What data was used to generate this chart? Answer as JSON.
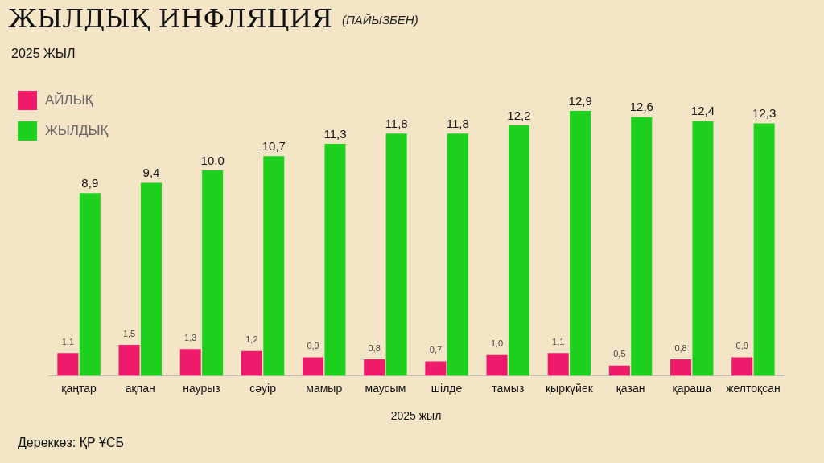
{
  "chart_data": {
    "type": "bar",
    "title": "ЖЫЛДЫҚ ИНФЛЯЦИЯ",
    "subtitle": "(ПАЙЫЗБЕН)",
    "xlabel": "2025 жыл",
    "annotations": [
      "2025 ЖЫЛ",
      "Дереккөз: ҚР ҰСБ"
    ],
    "categories": [
      "қаңтар",
      "ақпан",
      "наурыз",
      "сәуір",
      "мамыр",
      "маусым",
      "шілде",
      "тамыз",
      "қыркүйек",
      "қазан",
      "қараша",
      "желтоқсан"
    ],
    "series": [
      {
        "name": "АЙЛЫҚ",
        "color": "#ee1a6a",
        "values": [
          1.1,
          1.5,
          1.3,
          1.2,
          0.9,
          0.8,
          0.7,
          1.0,
          1.1,
          0.5,
          0.8,
          0.9
        ],
        "value_labels": [
          "1,1",
          "1,5",
          "1,3",
          "1,2",
          "0,9",
          "0,8",
          "0,7",
          "1,0",
          "1,1",
          "0,5",
          "0,8",
          "0,9"
        ]
      },
      {
        "name": "ЖЫЛДЫҚ",
        "color": "#1fd11f",
        "values": [
          8.9,
          9.4,
          10.0,
          10.7,
          11.3,
          11.8,
          11.8,
          12.2,
          12.9,
          12.6,
          12.4,
          12.3
        ],
        "value_labels": [
          "8,9",
          "9,4",
          "10,0",
          "10,7",
          "11,3",
          "11,8",
          "11,8",
          "12,2",
          "12,9",
          "12,6",
          "12,4",
          "12,3"
        ]
      }
    ],
    "legend": "top left",
    "grid": false
  }
}
